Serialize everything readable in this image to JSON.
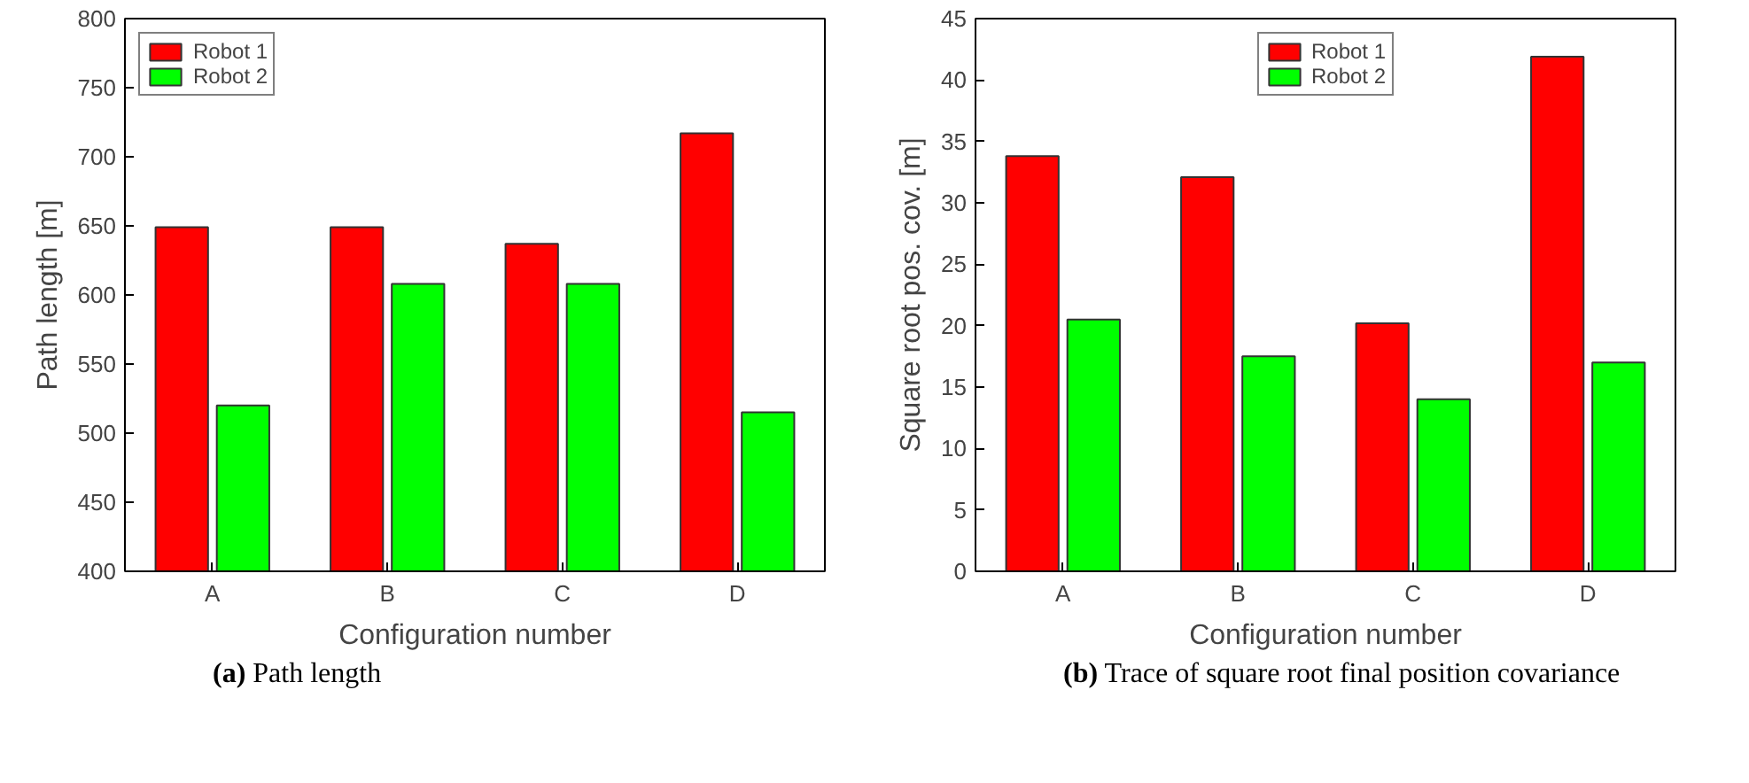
{
  "chart_data": [
    {
      "type": "bar",
      "title": "(a) Path length",
      "xlabel": "Configuration number",
      "ylabel": "Path length [m]",
      "categories": [
        "A",
        "B",
        "C",
        "D"
      ],
      "series": [
        {
          "name": "Robot 1",
          "color": "#ff0000",
          "values": [
            649,
            649,
            637,
            717
          ]
        },
        {
          "name": "Robot 2",
          "color": "#00ff00",
          "values": [
            520,
            608,
            608,
            515
          ]
        }
      ],
      "ylim": [
        400,
        800
      ],
      "yticks": [
        400,
        450,
        500,
        550,
        600,
        650,
        700,
        750,
        800
      ],
      "grid": false,
      "legend": "top left"
    },
    {
      "type": "bar",
      "title": "(b) Trace of square root final position covariance",
      "xlabel": "Configuration number",
      "ylabel": "Square root pos. cov. [m]",
      "categories": [
        "A",
        "B",
        "C",
        "D"
      ],
      "series": [
        {
          "name": "Robot 1",
          "color": "#ff0000",
          "values": [
            33.8,
            32.1,
            20.2,
            41.9
          ]
        },
        {
          "name": "Robot 2",
          "color": "#00ff00",
          "values": [
            20.5,
            17.5,
            14.0,
            17.0
          ]
        }
      ],
      "ylim": [
        0,
        45
      ],
      "yticks": [
        0,
        5,
        10,
        15,
        20,
        25,
        30,
        35,
        40,
        45
      ],
      "grid": false,
      "legend": "top"
    }
  ]
}
